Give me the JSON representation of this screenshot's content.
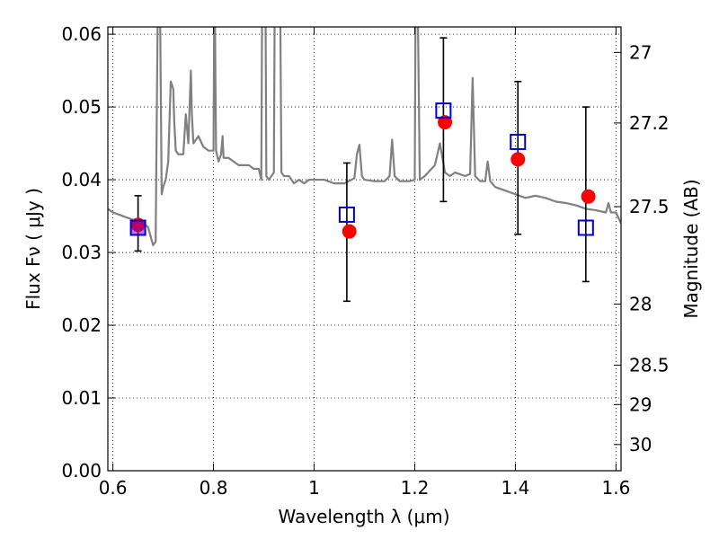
{
  "chart_data": {
    "type": "scatter",
    "title": "",
    "xlabel": "Wavelength  λ (μm)",
    "ylabel": "Flux  Fν  ( μJy )",
    "ylabel_right": "Magnitude (AB)",
    "xlim": [
      0.59,
      1.61
    ],
    "ylim": [
      0.0,
      0.061
    ],
    "grid": true,
    "x_ticks": [
      0.6,
      0.8,
      1.0,
      1.2,
      1.4,
      1.6
    ],
    "x_tick_labels": [
      "0.6",
      "0.8",
      "1",
      "1.2",
      "1.4",
      "1.6"
    ],
    "y_ticks": [
      0.0,
      0.01,
      0.02,
      0.03,
      0.04,
      0.05,
      0.06
    ],
    "y_tick_labels": [
      "0.00",
      "0.01",
      "0.02",
      "0.03",
      "0.04",
      "0.05",
      "0.06"
    ],
    "right_ticks": [
      {
        "mag": "27",
        "flux": 0.0575
      },
      {
        "mag": "27.2",
        "flux": 0.0478
      },
      {
        "mag": "27.5",
        "flux": 0.0363
      },
      {
        "mag": "28",
        "flux": 0.0229
      },
      {
        "mag": "28.5",
        "flux": 0.0145
      },
      {
        "mag": "29",
        "flux": 0.0091
      },
      {
        "mag": "30",
        "flux": 0.0036
      }
    ],
    "series": [
      {
        "marker": "open-square",
        "color": "#0000cc",
        "x": [
          0.65,
          1.065,
          1.257,
          1.405,
          1.54
        ],
        "y": [
          0.0334,
          0.0352,
          0.0495,
          0.0452,
          0.0334
        ],
        "yerr_low": [
          0.0032,
          0.0119,
          0.0125,
          0.0127,
          0.0074
        ],
        "yerr_high": [
          0.0044,
          0.0071,
          0.01,
          0.0083,
          0.0166
        ]
      },
      {
        "marker": "filled-circle",
        "color": "#ff0000",
        "x": [
          0.65,
          1.07,
          1.26,
          1.405,
          1.545
        ],
        "y": [
          0.0338,
          0.0329,
          0.0479,
          0.0428,
          0.0377
        ]
      },
      {
        "marker": "line",
        "color": "#808080",
        "x": [
          0.59,
          0.6,
          0.62,
          0.64,
          0.66,
          0.67,
          0.675,
          0.68,
          0.685,
          0.69,
          0.693,
          0.697,
          0.7,
          0.705,
          0.71,
          0.715,
          0.72,
          0.722,
          0.725,
          0.73,
          0.74,
          0.745,
          0.75,
          0.755,
          0.757,
          0.76,
          0.77,
          0.78,
          0.79,
          0.8,
          0.802,
          0.805,
          0.81,
          0.815,
          0.818,
          0.82,
          0.83,
          0.85,
          0.87,
          0.88,
          0.89,
          0.895,
          0.897,
          0.9,
          0.903,
          0.905,
          0.91,
          0.92,
          0.922,
          0.925,
          0.93,
          0.932,
          0.935,
          0.94,
          0.95,
          0.96,
          0.97,
          0.98,
          0.99,
          1.0,
          1.02,
          1.04,
          1.06,
          1.08,
          1.085,
          1.09,
          1.095,
          1.1,
          1.12,
          1.14,
          1.15,
          1.155,
          1.16,
          1.17,
          1.19,
          1.2,
          1.202,
          1.205,
          1.21,
          1.22,
          1.24,
          1.25,
          1.26,
          1.27,
          1.28,
          1.3,
          1.31,
          1.315,
          1.32,
          1.33,
          1.34,
          1.345,
          1.35,
          1.36,
          1.38,
          1.4,
          1.42,
          1.44,
          1.46,
          1.48,
          1.5,
          1.52,
          1.54,
          1.56,
          1.58,
          1.585,
          1.59,
          1.6,
          1.61
        ],
        "y": [
          0.036,
          0.0355,
          0.035,
          0.0345,
          0.034,
          0.0335,
          0.0322,
          0.031,
          0.0315,
          0.07,
          0.07,
          0.038,
          0.039,
          0.04,
          0.0425,
          0.0535,
          0.0525,
          0.048,
          0.044,
          0.0435,
          0.0435,
          0.049,
          0.045,
          0.055,
          0.049,
          0.045,
          0.046,
          0.0445,
          0.044,
          0.044,
          0.07,
          0.044,
          0.0425,
          0.0435,
          0.046,
          0.043,
          0.043,
          0.042,
          0.042,
          0.0415,
          0.0415,
          0.04,
          0.07,
          0.07,
          0.07,
          0.0405,
          0.04,
          0.041,
          0.07,
          0.07,
          0.07,
          0.07,
          0.041,
          0.0405,
          0.0405,
          0.0395,
          0.04,
          0.0395,
          0.04,
          0.04,
          0.04,
          0.0395,
          0.0395,
          0.0402,
          0.0435,
          0.0448,
          0.0405,
          0.04,
          0.0398,
          0.0398,
          0.0405,
          0.0455,
          0.0405,
          0.0398,
          0.0398,
          0.04,
          0.07,
          0.07,
          0.04,
          0.0405,
          0.042,
          0.045,
          0.041,
          0.0405,
          0.041,
          0.0405,
          0.0408,
          0.054,
          0.0405,
          0.0398,
          0.0398,
          0.0425,
          0.0398,
          0.039,
          0.0385,
          0.038,
          0.0375,
          0.0378,
          0.0375,
          0.037,
          0.0368,
          0.0365,
          0.036,
          0.0358,
          0.0355,
          0.0368,
          0.0355,
          0.0355,
          0.034
        ]
      }
    ]
  }
}
